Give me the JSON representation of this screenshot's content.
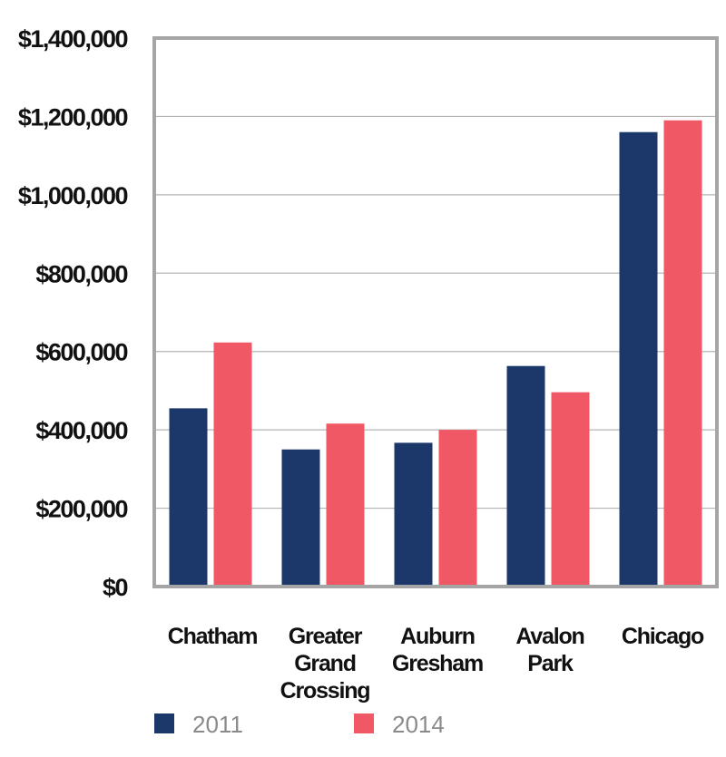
{
  "chart_data": {
    "type": "bar",
    "categories": [
      "Chatham",
      "Greater Grand Crossing",
      "Auburn Gresham",
      "Avalon Park",
      "Chicago"
    ],
    "category_lines": [
      [
        "Chatham"
      ],
      [
        "Greater",
        "Grand",
        "Crossing"
      ],
      [
        "Auburn",
        "Gresham"
      ],
      [
        "Avalon",
        "Park"
      ],
      [
        "Chicago"
      ]
    ],
    "series": [
      {
        "name": "2011",
        "color": "#1c3769",
        "values": [
          455000,
          350000,
          367000,
          563000,
          1160000
        ]
      },
      {
        "name": "2014",
        "color": "#f05865",
        "values": [
          623000,
          416000,
          400000,
          496000,
          1190000
        ]
      }
    ],
    "ylim": [
      0,
      1400000
    ],
    "y_ticks": [
      0,
      200000,
      400000,
      600000,
      800000,
      1000000,
      1200000,
      1400000
    ],
    "y_tick_labels": [
      "$0",
      "$200,000",
      "$400,000",
      "$600,000",
      "$800,000",
      "$1,000,000",
      "$1,200,000",
      "$1,400,000"
    ],
    "title": "",
    "xlabel": "",
    "ylabel": "",
    "grid": true,
    "legend_position": "bottom"
  }
}
